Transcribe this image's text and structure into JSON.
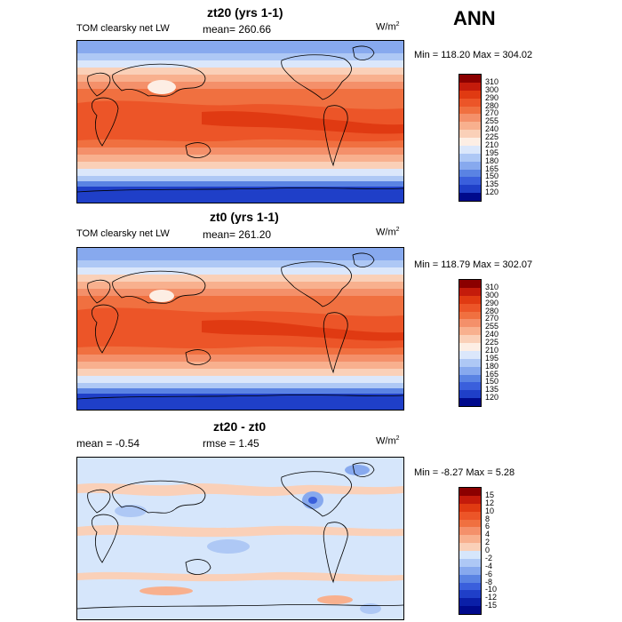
{
  "season": "ANN",
  "panels": [
    {
      "id": "zt20",
      "title": "zt20 (yrs 1-1)",
      "variable": "TOM clearsky net LW",
      "stat_left": "mean= 260.66",
      "stat_mid": "",
      "units": "W/m",
      "units_sup": "2",
      "minmax": "Min = 118.20 Max = 304.02",
      "levels": [
        "310",
        "300",
        "290",
        "280",
        "270",
        "255",
        "240",
        "225",
        "210",
        "195",
        "180",
        "165",
        "150",
        "135",
        "120"
      ],
      "colors": [
        "#8b0000",
        "#c41b0b",
        "#e03a12",
        "#ec5528",
        "#f07040",
        "#f4906a",
        "#f8b08e",
        "#fad0b8",
        "#fdeee4",
        "#dbe7fb",
        "#aec8f5",
        "#87a9ee",
        "#5a83e3",
        "#3a5fdc",
        "#1f3fc8",
        "#000a8c"
      ]
    },
    {
      "id": "zt0",
      "title": "zt0 (yrs 1-1)",
      "variable": "TOM clearsky net LW",
      "stat_left": "mean= 261.20",
      "stat_mid": "",
      "units": "W/m",
      "units_sup": "2",
      "minmax": "Min = 118.79 Max = 302.07",
      "levels": [
        "310",
        "300",
        "290",
        "280",
        "270",
        "255",
        "240",
        "225",
        "210",
        "195",
        "180",
        "165",
        "150",
        "135",
        "120"
      ],
      "colors": [
        "#8b0000",
        "#c41b0b",
        "#e03a12",
        "#ec5528",
        "#f07040",
        "#f4906a",
        "#f8b08e",
        "#fad0b8",
        "#fdeee4",
        "#dbe7fb",
        "#aec8f5",
        "#87a9ee",
        "#5a83e3",
        "#3a5fdc",
        "#1f3fc8",
        "#000a8c"
      ]
    },
    {
      "id": "diff",
      "title": "zt20 - zt0",
      "variable": "",
      "stat_left": "mean =  -0.54",
      "stat_mid": "rmse =   1.45",
      "units": "W/m",
      "units_sup": "2",
      "minmax": "Min =  -8.27 Max =   5.28",
      "levels": [
        "15",
        "12",
        "10",
        "8",
        "6",
        "4",
        "2",
        "0",
        "-2",
        "-4",
        "-6",
        "-8",
        "-10",
        "-12",
        "-15"
      ],
      "colors": [
        "#8b0000",
        "#c41b0b",
        "#e03a12",
        "#ec5528",
        "#f07040",
        "#f4906a",
        "#f8b08e",
        "#fad0b8",
        "#d6e6fb",
        "#aec8f5",
        "#87a9ee",
        "#5a83e3",
        "#3a5fdc",
        "#1f3fc8",
        "#0a1fa8",
        "#000a8c"
      ]
    }
  ]
}
